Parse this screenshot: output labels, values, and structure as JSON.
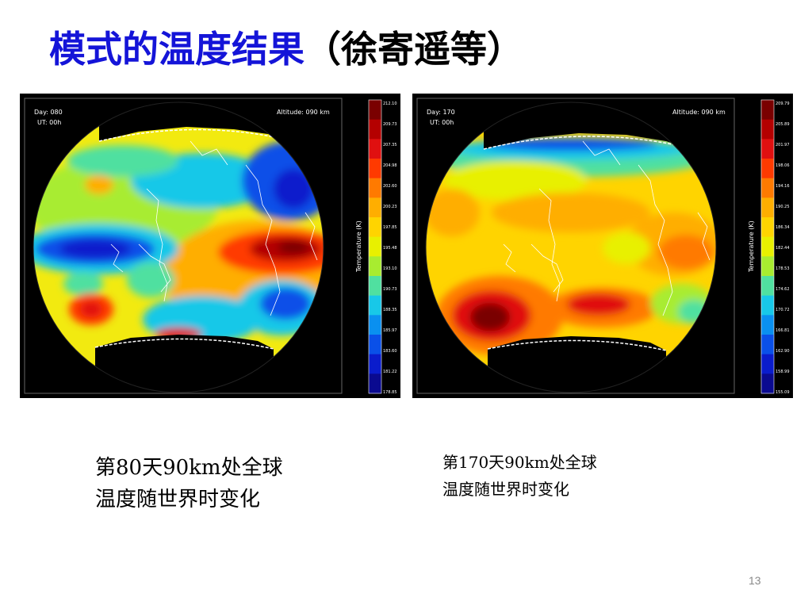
{
  "slide": {
    "title_blue": "模式的温度结果",
    "title_black": "（徐寄遥等）",
    "page_number": "13"
  },
  "panels": [
    {
      "day_label": "Day: 080",
      "ut_label": "UT: 00h",
      "altitude_label": "Altitude: 090 km",
      "colorbar_title": "Temperature (K)",
      "colorbar_ticks": [
        "212.10",
        "209.73",
        "207.35",
        "204.98",
        "202.60",
        "200.23",
        "197.85",
        "195.48",
        "193.10",
        "190.73",
        "188.35",
        "185.97",
        "183.60",
        "181.22",
        "178.85"
      ]
    },
    {
      "day_label": "Day: 170",
      "ut_label": "UT: 00h",
      "altitude_label": "Altitude: 090 km",
      "colorbar_title": "Temperature (K)",
      "colorbar_ticks": [
        "209.79",
        "205.89",
        "201.97",
        "198.06",
        "194.16",
        "190.25",
        "186.34",
        "182.44",
        "178.53",
        "174.62",
        "170.72",
        "166.81",
        "162.90",
        "158.99",
        "155.09"
      ]
    }
  ],
  "captions": [
    {
      "line1": "第80天90km处全球",
      "line2": "温度随世界时变化"
    },
    {
      "line1": "第170天90km处全球",
      "line2": "温度随世界时变化"
    }
  ],
  "colors": {
    "title_blue": "#1414d8",
    "colorbar": [
      "#7a0000",
      "#b40000",
      "#e01010",
      "#ff3a00",
      "#ff7a00",
      "#ffae00",
      "#ffd400",
      "#e8f000",
      "#a8ec30",
      "#50e0a0",
      "#18c8e8",
      "#0a90f0",
      "#0a50e8",
      "#0a1ccc",
      "#0a0a90"
    ]
  }
}
